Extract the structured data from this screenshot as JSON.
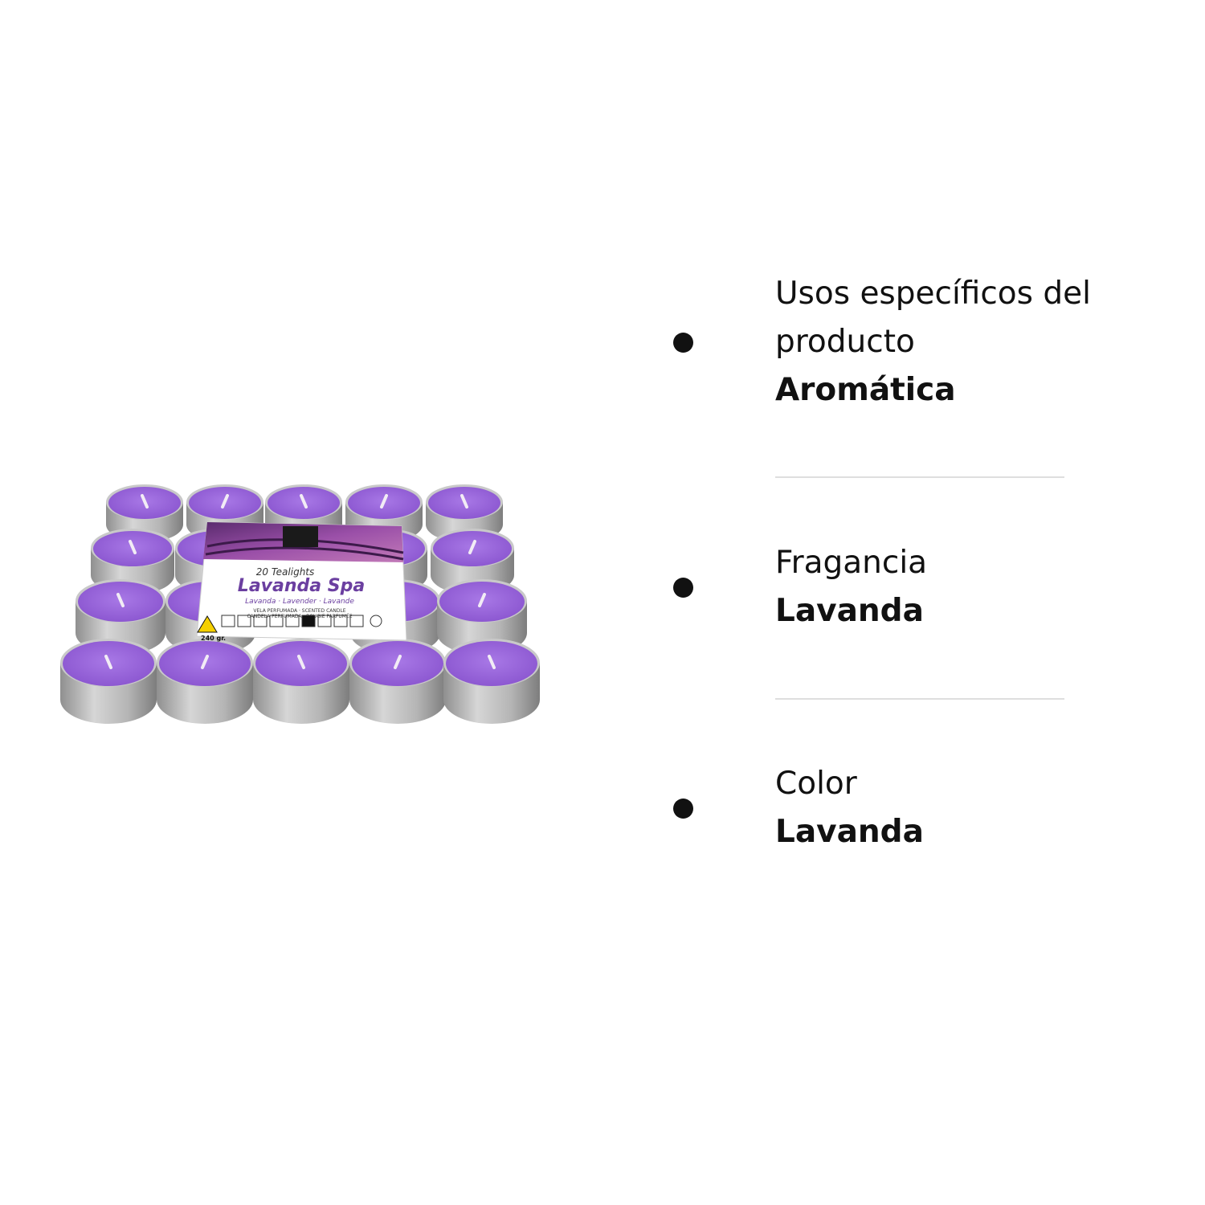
{
  "product": {
    "label": {
      "count": "20 Tealights",
      "name": "Lavanda Spa",
      "scents": "Lavanda · Lavender · Lavande",
      "line1": "VELA PERFUMADA · SCENTED CANDLE",
      "line2": "CANDELA PERFUMADA · BOUGIE PARFUMÉE",
      "weight": "240 gr."
    }
  },
  "attributes": [
    {
      "label": "Usos específicos del producto",
      "value": "Aromática"
    },
    {
      "label": "Fragancia",
      "value": "Lavanda"
    },
    {
      "label": "Color",
      "value": "Lavanda"
    }
  ]
}
